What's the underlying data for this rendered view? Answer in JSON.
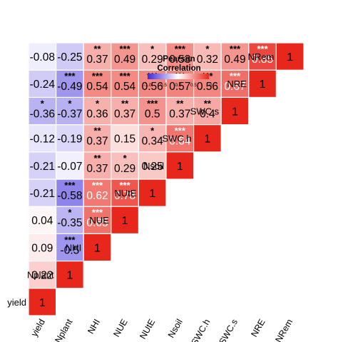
{
  "chart_data": {
    "type": "heatmap",
    "variables": [
      "yield",
      "Nplant",
      "NHI",
      "NUE",
      "NUtE",
      "Nsoil",
      "SWC.h",
      "SWC.s",
      "NRE",
      "NRem"
    ],
    "cells": [
      {
        "row": "Nplant",
        "col": "yield",
        "value": "0.22",
        "stars": ""
      },
      {
        "row": "NHI",
        "col": "yield",
        "value": "0.09",
        "stars": ""
      },
      {
        "row": "NHI",
        "col": "Nplant",
        "value": "-0.5",
        "stars": "***"
      },
      {
        "row": "NUE",
        "col": "yield",
        "value": "0.04",
        "stars": ""
      },
      {
        "row": "NUE",
        "col": "Nplant",
        "value": "-0.35",
        "stars": "*"
      },
      {
        "row": "NUE",
        "col": "NHI",
        "value": "0.65",
        "stars": "***"
      },
      {
        "row": "NUtE",
        "col": "yield",
        "value": "-0.21",
        "stars": ""
      },
      {
        "row": "NUtE",
        "col": "Nplant",
        "value": "-0.58",
        "stars": "***"
      },
      {
        "row": "NUtE",
        "col": "NHI",
        "value": "0.62",
        "stars": "***"
      },
      {
        "row": "NUtE",
        "col": "NUE",
        "value": "0.78",
        "stars": "***"
      },
      {
        "row": "Nsoil",
        "col": "yield",
        "value": "-0.21",
        "stars": ""
      },
      {
        "row": "Nsoil",
        "col": "Nplant",
        "value": "-0.07",
        "stars": ""
      },
      {
        "row": "Nsoil",
        "col": "NHI",
        "value": "0.37",
        "stars": "**"
      },
      {
        "row": "Nsoil",
        "col": "NUE",
        "value": "0.29",
        "stars": "*"
      },
      {
        "row": "Nsoil",
        "col": "NUtE",
        "value": "0.25",
        "stars": ""
      },
      {
        "row": "SWC.h",
        "col": "yield",
        "value": "-0.12",
        "stars": ""
      },
      {
        "row": "SWC.h",
        "col": "Nplant",
        "value": "-0.19",
        "stars": ""
      },
      {
        "row": "SWC.h",
        "col": "NHI",
        "value": "0.37",
        "stars": "**"
      },
      {
        "row": "SWC.h",
        "col": "NUE",
        "value": "0.15",
        "stars": ""
      },
      {
        "row": "SWC.h",
        "col": "NUtE",
        "value": "0.34",
        "stars": "*"
      },
      {
        "row": "SWC.h",
        "col": "Nsoil",
        "value": "0.64",
        "stars": "***"
      },
      {
        "row": "SWC.s",
        "col": "yield",
        "value": "-0.36",
        "stars": "*"
      },
      {
        "row": "SWC.s",
        "col": "Nplant",
        "value": "-0.37",
        "stars": "*"
      },
      {
        "row": "SWC.s",
        "col": "NHI",
        "value": "0.36",
        "stars": "*"
      },
      {
        "row": "SWC.s",
        "col": "NUE",
        "value": "0.37",
        "stars": "**"
      },
      {
        "row": "SWC.s",
        "col": "NUtE",
        "value": "0.5",
        "stars": "***"
      },
      {
        "row": "SWC.s",
        "col": "Nsoil",
        "value": "0.37",
        "stars": "**"
      },
      {
        "row": "SWC.s",
        "col": "SWC.h",
        "value": "0.4",
        "stars": "**"
      },
      {
        "row": "NRE",
        "col": "yield",
        "value": "-0.24",
        "stars": ""
      },
      {
        "row": "NRE",
        "col": "Nplant",
        "value": "-0.49",
        "stars": "***"
      },
      {
        "row": "NRE",
        "col": "NHI",
        "value": "0.54",
        "stars": "***"
      },
      {
        "row": "NRE",
        "col": "NUE",
        "value": "0.54",
        "stars": "***"
      },
      {
        "row": "NRE",
        "col": "NUtE",
        "value": "0.56",
        "stars": "***"
      },
      {
        "row": "NRE",
        "col": "Nsoil",
        "value": "0.57",
        "stars": "***"
      },
      {
        "row": "NRE",
        "col": "SWC.h",
        "value": "0.56",
        "stars": "***"
      },
      {
        "row": "NRE",
        "col": "SWC.s",
        "value": "0.67",
        "stars": "***"
      },
      {
        "row": "NRem",
        "col": "yield",
        "value": "-0.08",
        "stars": ""
      },
      {
        "row": "NRem",
        "col": "Nplant",
        "value": "-0.25",
        "stars": ""
      },
      {
        "row": "NRem",
        "col": "NHI",
        "value": "0.37",
        "stars": "**"
      },
      {
        "row": "NRem",
        "col": "NUE",
        "value": "0.49",
        "stars": "***"
      },
      {
        "row": "NRem",
        "col": "NUtE",
        "value": "0.29",
        "stars": "*"
      },
      {
        "row": "NRem",
        "col": "Nsoil",
        "value": "0.53",
        "stars": "***"
      },
      {
        "row": "NRem",
        "col": "SWC.h",
        "value": "0.32",
        "stars": "*"
      },
      {
        "row": "NRem",
        "col": "SWC.s",
        "value": "0.49",
        "stars": "***"
      },
      {
        "row": "NRem",
        "col": "NRE",
        "value": "0.85",
        "stars": "***"
      }
    ],
    "diagonal_label": "1",
    "legend": {
      "title": "Pearson Correlation",
      "ticks": [
        "-1.0",
        "-0.5",
        "0.0",
        "0.5",
        "1.0"
      ],
      "range": [
        -1,
        1
      ],
      "placement": "top-left"
    },
    "colors": {
      "negative": "#3d2bd9",
      "zero": "#ffffff",
      "positive": "#e8271c"
    }
  }
}
